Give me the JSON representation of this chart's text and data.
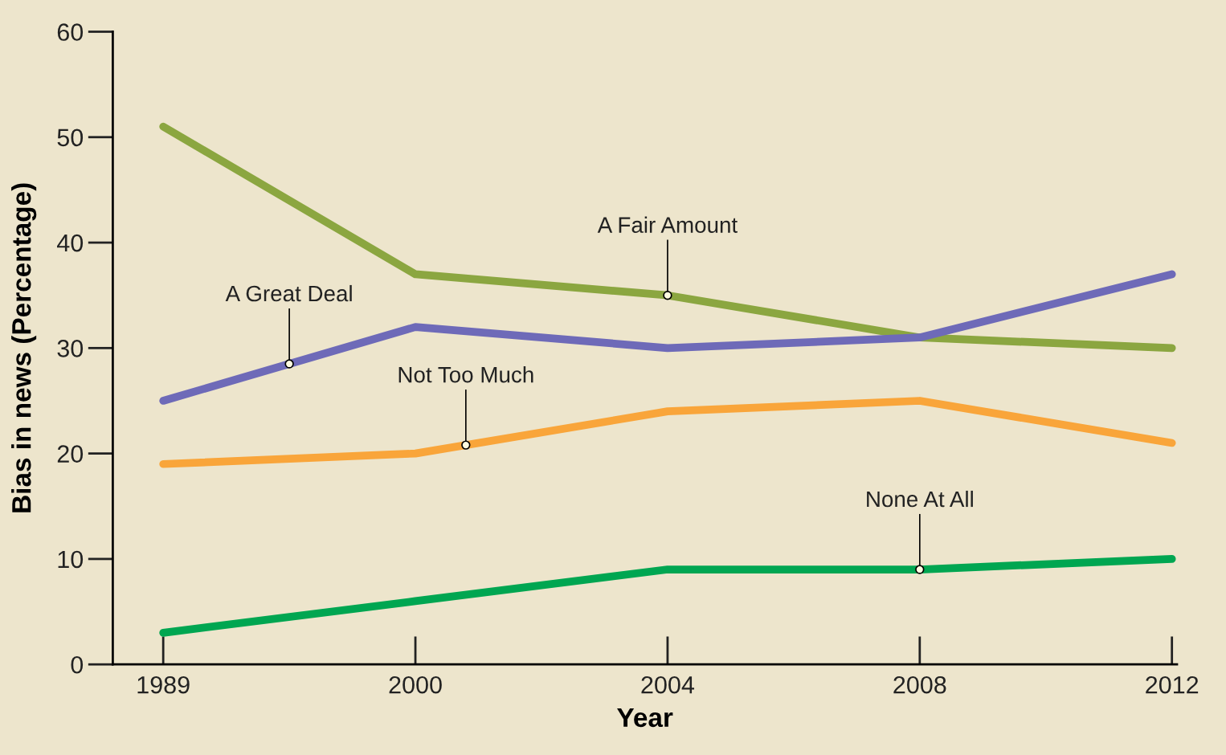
{
  "chart_data": {
    "type": "line",
    "xlabel": "Year",
    "ylabel": "Bias in news (Percentage)",
    "categories": [
      "1989",
      "2000",
      "2004",
      "2008",
      "2012"
    ],
    "series": [
      {
        "name": "A Fair Amount",
        "color": "#8ba640",
        "values": [
          51,
          37,
          35,
          31,
          30
        ]
      },
      {
        "name": "A Great Deal",
        "color": "#6e6ab8",
        "values": [
          25,
          32,
          30,
          31,
          37
        ]
      },
      {
        "name": "Not Too Much",
        "color": "#f9a53a",
        "values": [
          19,
          20,
          24,
          25,
          21
        ]
      },
      {
        "name": "None At All",
        "color": "#00a651",
        "values": [
          3,
          6,
          9,
          9,
          10
        ]
      }
    ],
    "ylim": [
      0,
      60
    ],
    "yticks": [
      0,
      10,
      20,
      30,
      40,
      50,
      60
    ],
    "grid": false,
    "legend": false,
    "marker": "none",
    "line_style": "solid"
  }
}
